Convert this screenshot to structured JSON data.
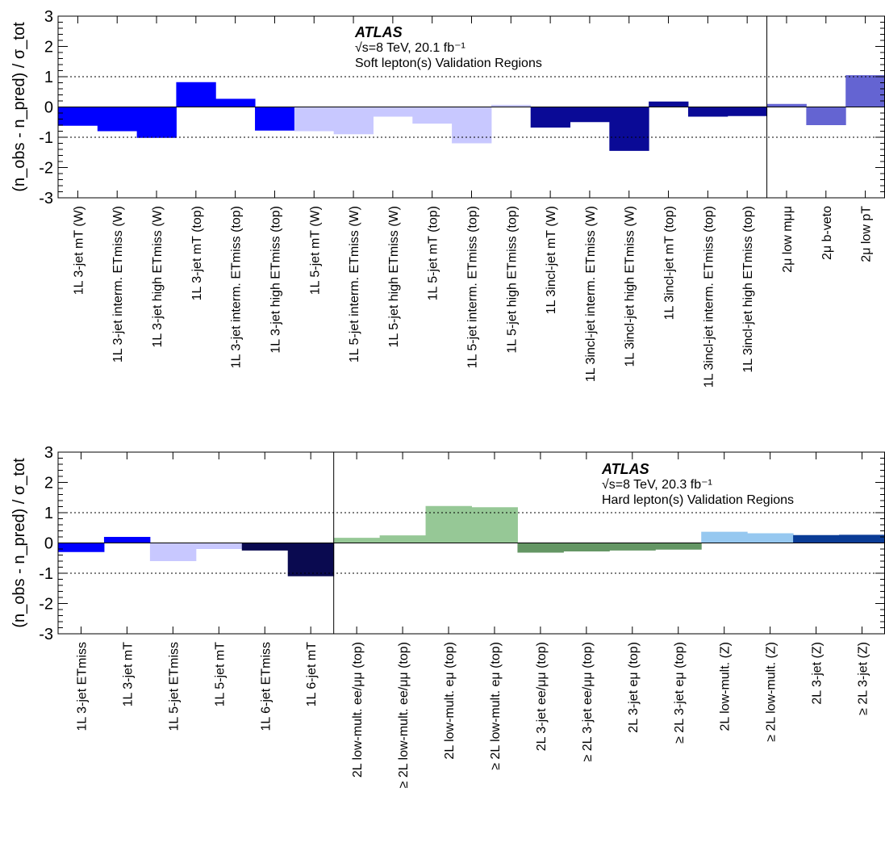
{
  "chart_data": [
    {
      "type": "bar",
      "ylabel": "(n_obs - n_pred) / σ_tot",
      "ylim": [
        -3,
        3
      ],
      "yticks": [
        "3",
        "2",
        "1",
        "0",
        "-1",
        "-2",
        "-3"
      ],
      "reference_lines": [
        1,
        -1
      ],
      "annotation": {
        "experiment": "ATLAS",
        "energy": "√s=8 TeV, 20.1 fb⁻¹",
        "region": "Soft lepton(s) Validation Regions"
      },
      "separator_after_index": 17,
      "categories": [
        "1L 3-jet mT (W)",
        "1L 3-jet interm. ETmiss (W)",
        "1L 3-jet high ETmiss (W)",
        "1L 3-jet mT (top)",
        "1L 3-jet interm. ETmiss (top)",
        "1L 3-jet high ETmiss (top)",
        "1L 5-jet mT (W)",
        "1L 5-jet interm. ETmiss (W)",
        "1L 5-jet high ETmiss (W)",
        "1L 5-jet mT (top)",
        "1L 5-jet interm. ETmiss (top)",
        "1L 5-jet high ETmiss (top)",
        "1L 3incl-jet mT (W)",
        "1L 3incl-jet interm. ETmiss (W)",
        "1L 3incl-jet high ETmiss (W)",
        "1L 3incl-jet mT (top)",
        "1L 3incl-jet interm. ETmiss (top)",
        "1L 3incl-jet high ETmiss (top)",
        "2μ low mμμ",
        "2μ b-veto",
        "2μ low pT"
      ],
      "values": [
        -0.62,
        -0.8,
        -1.02,
        0.82,
        0.27,
        -0.78,
        -0.8,
        -0.9,
        -0.32,
        -0.55,
        -1.2,
        0.07,
        -0.68,
        -0.5,
        -1.45,
        0.18,
        -0.32,
        -0.3,
        0.1,
        -0.6,
        1.05
      ],
      "colors": [
        "#0000ff",
        "#0000ff",
        "#0000ff",
        "#0000ff",
        "#0000ff",
        "#0000ff",
        "#c8c8ff",
        "#c8c8ff",
        "#c8c8ff",
        "#c8c8ff",
        "#c8c8ff",
        "#c8c8ff",
        "#0a0a96",
        "#0a0a96",
        "#0a0a96",
        "#0a0a96",
        "#0a0a96",
        "#0a0a96",
        "#6464d2",
        "#6464d2",
        "#6464d2"
      ]
    },
    {
      "type": "bar",
      "ylabel": "(n_obs - n_pred) / σ_tot",
      "ylim": [
        -3,
        3
      ],
      "yticks": [
        "3",
        "2",
        "1",
        "0",
        "-1",
        "-2",
        "-3"
      ],
      "reference_lines": [
        1,
        -1
      ],
      "annotation": {
        "experiment": "ATLAS",
        "energy": "√s=8 TeV, 20.3 fb⁻¹",
        "region": "Hard lepton(s) Validation Regions"
      },
      "separator_after_index": 5,
      "categories": [
        "1L 3-jet ETmiss",
        "1L 3-jet mT",
        "1L 5-jet ETmiss",
        "1L 5-jet mT",
        "1L 6-jet ETmiss",
        "1L 6-jet mT",
        "2L low-mult. ee/μμ (top)",
        "≥ 2L low-mult. ee/μμ (top)",
        "2L low-mult. eμ (top)",
        "≥ 2L low-mult. eμ (top)",
        "2L 3-jet ee/μμ (top)",
        "≥ 2L 3-jet ee/μμ (top)",
        "2L 3-jet eμ (top)",
        "≥ 2L 3-jet eμ (top)",
        "2L low-mult. (Z)",
        "≥ 2L low-mult. (Z)",
        "2L 3-jet (Z)",
        "≥ 2L 3-jet (Z)"
      ],
      "values": [
        -0.3,
        0.2,
        -0.6,
        -0.2,
        -0.25,
        -1.1,
        0.17,
        0.25,
        1.22,
        1.18,
        -0.32,
        -0.28,
        -0.25,
        -0.22,
        0.37,
        0.32,
        0.26,
        0.27
      ],
      "colors": [
        "#0000ff",
        "#0000ff",
        "#c8c8ff",
        "#c8c8ff",
        "#0a0a50",
        "#0a0a50",
        "#96c896",
        "#96c896",
        "#96c896",
        "#96c896",
        "#649664",
        "#649664",
        "#649664",
        "#649664",
        "#96c8f0",
        "#96c8f0",
        "#0a3c96",
        "#0a3c96"
      ]
    }
  ]
}
